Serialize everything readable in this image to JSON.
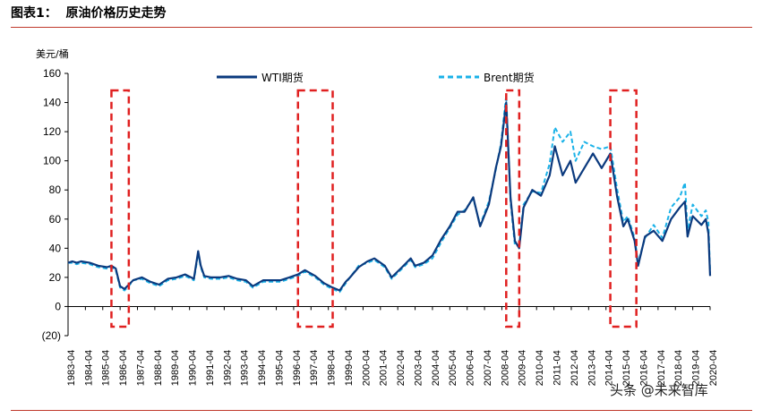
{
  "header": {
    "title": "图表1：  原油价格历史走势"
  },
  "watermark": "头条 @未来智库",
  "colors": {
    "wti": "#0b3a7e",
    "brent": "#1ab2e8",
    "highlight": "#e02020",
    "rule": "#c0392b"
  },
  "chart_data": {
    "type": "line",
    "ylabel": "美元/桶",
    "ylim": [
      -20,
      160
    ],
    "yticks": [
      160,
      140,
      120,
      100,
      80,
      60,
      40,
      20,
      0,
      -20
    ],
    "ytick_labels": [
      "160",
      "140",
      "120",
      "100",
      "80",
      "60",
      "40",
      "20",
      "0",
      "(20)"
    ],
    "xlim": [
      1983.25,
      2020.25
    ],
    "xticks": [
      "1983-04",
      "1984-04",
      "1985-04",
      "1986-04",
      "1987-04",
      "1988-04",
      "1989-04",
      "1990-04",
      "1991-04",
      "1992-04",
      "1993-04",
      "1994-04",
      "1995-04",
      "1996-04",
      "1997-04",
      "1998-04",
      "1999-04",
      "2000-04",
      "2001-04",
      "2002-04",
      "2003-04",
      "2004-04",
      "2005-04",
      "2006-04",
      "2007-04",
      "2008-04",
      "2009-04",
      "2010-04",
      "2011-04",
      "2012-04",
      "2013-04",
      "2014-04",
      "2015-04",
      "2016-04",
      "2017-04",
      "2018-04",
      "2019-04",
      "2020-04"
    ],
    "legend": {
      "placement": "top",
      "entries": [
        "WTI期货",
        "Brent期货"
      ]
    },
    "highlight_periods": [
      [
        1985.75,
        1986.75
      ],
      [
        1996.5,
        1998.5
      ],
      [
        2008.5,
        2009.25
      ],
      [
        2014.5,
        2016.0
      ]
    ],
    "series": [
      {
        "name": "WTI期货",
        "style": "solid",
        "x": [
          1983.25,
          1983.5,
          1983.75,
          1984.0,
          1984.5,
          1985.0,
          1985.5,
          1985.75,
          1986.0,
          1986.25,
          1986.5,
          1986.75,
          1987.0,
          1987.5,
          1988.0,
          1988.5,
          1989.0,
          1989.5,
          1990.0,
          1990.5,
          1990.75,
          1990.9,
          1991.1,
          1991.5,
          1992.0,
          1992.5,
          1993.0,
          1993.5,
          1993.9,
          1994.5,
          1995.0,
          1995.5,
          1996.0,
          1996.5,
          1996.9,
          1997.5,
          1998.0,
          1998.5,
          1998.9,
          1999.25,
          1999.5,
          2000.0,
          2000.5,
          2000.9,
          2001.5,
          2001.9,
          2002.5,
          2003.0,
          2003.25,
          2003.75,
          2004.25,
          2004.75,
          2005.25,
          2005.7,
          2006.1,
          2006.6,
          2007.0,
          2007.5,
          2007.9,
          2008.2,
          2008.5,
          2008.75,
          2009.0,
          2009.25,
          2009.5,
          2010.0,
          2010.5,
          2011.0,
          2011.3,
          2011.75,
          2012.2,
          2012.5,
          2013.0,
          2013.5,
          2014.0,
          2014.5,
          2014.9,
          2015.25,
          2015.5,
          2015.9,
          2016.1,
          2016.5,
          2017.0,
          2017.5,
          2018.0,
          2018.5,
          2018.8,
          2018.95,
          2019.25,
          2019.75,
          2020.0,
          2020.15,
          2020.25
        ],
        "values": [
          30,
          31,
          30,
          31,
          30,
          28,
          27,
          28,
          26,
          14,
          12,
          15,
          18,
          20,
          17,
          15,
          19,
          20,
          22,
          19,
          38,
          28,
          21,
          20,
          20,
          21,
          19,
          18,
          14,
          18,
          18,
          18,
          20,
          22,
          25,
          21,
          16,
          13,
          11,
          17,
          20,
          27,
          31,
          33,
          28,
          20,
          27,
          33,
          28,
          30,
          35,
          46,
          55,
          65,
          65,
          75,
          55,
          70,
          95,
          110,
          140,
          75,
          45,
          40,
          68,
          80,
          76,
          90,
          110,
          90,
          100,
          85,
          95,
          105,
          95,
          105,
          75,
          55,
          60,
          45,
          28,
          48,
          52,
          45,
          60,
          68,
          72,
          48,
          62,
          56,
          60,
          50,
          21
        ]
      },
      {
        "name": "Brent期货",
        "style": "dashed",
        "x": [
          1983.25,
          1983.5,
          1983.75,
          1984.0,
          1984.5,
          1985.0,
          1985.5,
          1985.75,
          1986.0,
          1986.25,
          1986.5,
          1986.75,
          1987.0,
          1987.5,
          1988.0,
          1988.5,
          1989.0,
          1989.5,
          1990.0,
          1990.5,
          1990.75,
          1990.9,
          1991.1,
          1991.5,
          1992.0,
          1992.5,
          1993.0,
          1993.5,
          1993.9,
          1994.5,
          1995.0,
          1995.5,
          1996.0,
          1996.5,
          1996.9,
          1997.5,
          1998.0,
          1998.5,
          1998.9,
          1999.25,
          1999.5,
          2000.0,
          2000.5,
          2000.9,
          2001.5,
          2001.9,
          2002.5,
          2003.0,
          2003.25,
          2003.75,
          2004.25,
          2004.75,
          2005.25,
          2005.7,
          2006.1,
          2006.6,
          2007.0,
          2007.5,
          2007.9,
          2008.2,
          2008.5,
          2008.75,
          2009.0,
          2009.25,
          2009.5,
          2010.0,
          2010.5,
          2011.0,
          2011.3,
          2011.75,
          2012.2,
          2012.5,
          2013.0,
          2013.5,
          2014.0,
          2014.5,
          2014.9,
          2015.25,
          2015.5,
          2015.9,
          2016.1,
          2016.5,
          2017.0,
          2017.5,
          2018.0,
          2018.5,
          2018.8,
          2018.95,
          2019.25,
          2019.75,
          2020.0,
          2020.15,
          2020.25
        ],
        "values": [
          30,
          30,
          29,
          30,
          29,
          27,
          26,
          27,
          25,
          13,
          11,
          14,
          18,
          19,
          16,
          14,
          18,
          19,
          21,
          18,
          36,
          27,
          20,
          19,
          19,
          20,
          18,
          17,
          13,
          17,
          17,
          17,
          19,
          21,
          24,
          20,
          15,
          12,
          10,
          16,
          20,
          28,
          30,
          32,
          27,
          19,
          26,
          32,
          27,
          29,
          33,
          44,
          54,
          63,
          66,
          74,
          56,
          72,
          94,
          112,
          145,
          72,
          42,
          42,
          70,
          79,
          78,
          98,
          123,
          113,
          120,
          100,
          113,
          110,
          108,
          110,
          80,
          58,
          62,
          47,
          30,
          47,
          56,
          47,
          68,
          75,
          85,
          52,
          70,
          62,
          66,
          58,
          23
        ]
      }
    ]
  }
}
